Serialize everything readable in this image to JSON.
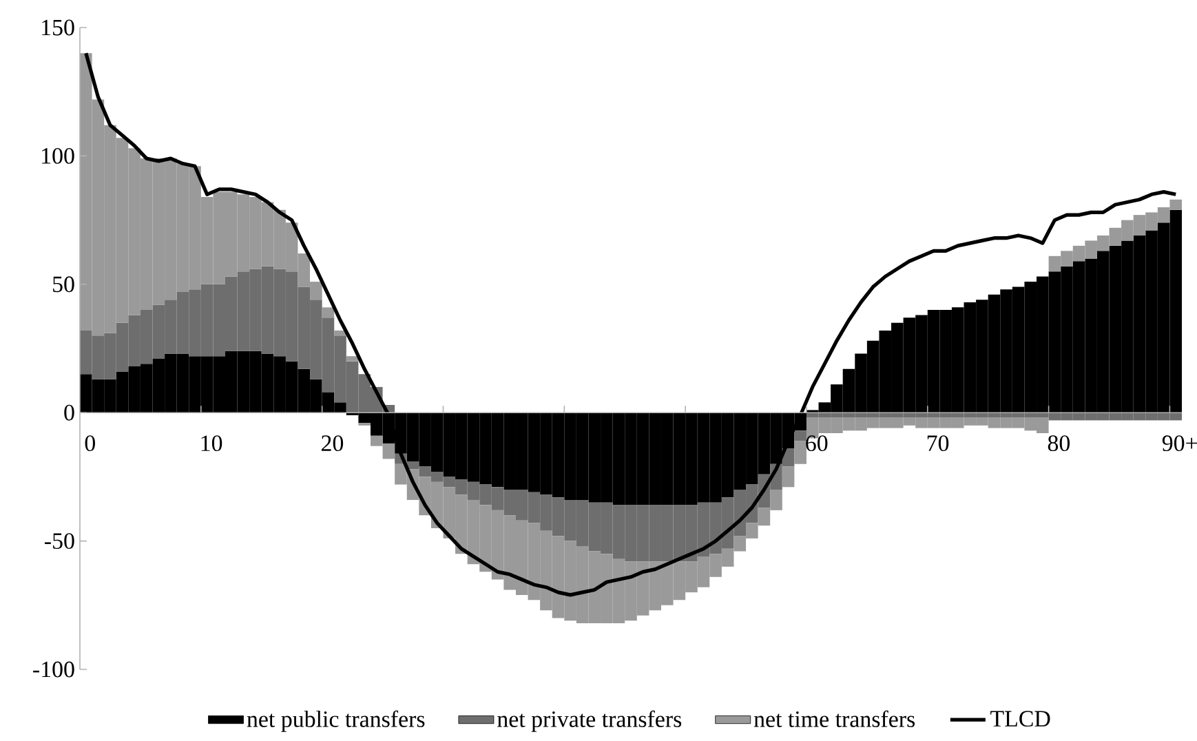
{
  "chart_data": {
    "type": "bar",
    "stacked": true,
    "legend": "bottom",
    "categories": [
      "0",
      null,
      null,
      null,
      null,
      null,
      null,
      null,
      null,
      null,
      "10",
      null,
      null,
      null,
      null,
      null,
      null,
      null,
      null,
      null,
      "20",
      null,
      null,
      null,
      null,
      null,
      null,
      null,
      null,
      null,
      null,
      null,
      null,
      null,
      null,
      null,
      null,
      null,
      null,
      null,
      null,
      null,
      null,
      null,
      null,
      null,
      null,
      null,
      null,
      null,
      null,
      null,
      null,
      null,
      null,
      null,
      null,
      null,
      null,
      null,
      "60",
      null,
      null,
      null,
      null,
      null,
      null,
      null,
      null,
      null,
      "70",
      null,
      null,
      null,
      null,
      null,
      null,
      null,
      null,
      null,
      "80",
      null,
      null,
      null,
      null,
      null,
      null,
      null,
      null,
      null,
      "90+"
    ],
    "ylim": [
      -100,
      150
    ],
    "yticks": [
      -100,
      -50,
      0,
      50,
      100,
      150
    ],
    "series": [
      {
        "name": "net public transfers",
        "color": "#000000",
        "values": [
          15,
          13,
          13,
          16,
          18,
          19,
          21,
          23,
          23,
          22,
          22,
          22,
          24,
          24,
          24,
          23,
          22,
          20,
          17,
          13,
          8,
          4,
          -1,
          -4,
          -9,
          -12,
          -16,
          -19,
          -21,
          -23,
          -25,
          -26,
          -27,
          -28,
          -29,
          -30,
          -30,
          -31,
          -32,
          -33,
          -34,
          -34,
          -35,
          -35,
          -36,
          -36,
          -36,
          -36,
          -36,
          -36,
          -36,
          -35,
          -35,
          -33,
          -30,
          -28,
          -24,
          -20,
          -14,
          -7,
          1,
          4,
          11,
          17,
          23,
          28,
          32,
          35,
          37,
          38,
          40,
          40,
          41,
          43,
          44,
          46,
          48,
          49,
          51,
          53,
          55,
          57,
          59,
          60,
          63,
          65,
          67,
          69,
          71,
          74,
          79
        ]
      },
      {
        "name": "net private transfers",
        "color": "#6e6e6e",
        "values": [
          17,
          17,
          18,
          19,
          20,
          21,
          21,
          21,
          24,
          26,
          28,
          28,
          29,
          31,
          32,
          34,
          34,
          35,
          32,
          31,
          29,
          26,
          20,
          15,
          10,
          3,
          -4,
          -3,
          -4,
          -4,
          -4,
          -6,
          -7,
          -8,
          -9,
          -10,
          -12,
          -12,
          -14,
          -15,
          -16,
          -18,
          -19,
          -20,
          -21,
          -22,
          -22,
          -22,
          -22,
          -22,
          -22,
          -21,
          -20,
          -20,
          -18,
          -15,
          -13,
          -10,
          -7,
          -4,
          -2,
          -2,
          -2,
          -2,
          -2,
          -2,
          -2,
          -2,
          -2,
          -2,
          -2,
          -2,
          -2,
          -2,
          -2,
          -2,
          -2,
          -2,
          -2,
          -2,
          -3,
          -3,
          -3,
          -3,
          -3,
          -3,
          -3,
          -3,
          -3,
          -3,
          -3
        ]
      },
      {
        "name": "net time transfers",
        "color": "#9a9a9a",
        "values": [
          108,
          92,
          81,
          72,
          65,
          59,
          57,
          55,
          50,
          48,
          34,
          36,
          33,
          30,
          28,
          25,
          23,
          19,
          13,
          7,
          4,
          2,
          2,
          -1,
          -4,
          -6,
          -8,
          -12,
          -15,
          -18,
          -20,
          -23,
          -25,
          -26,
          -27,
          -29,
          -29,
          -30,
          -31,
          -32,
          -31,
          -30,
          -28,
          -27,
          -25,
          -23,
          -21,
          -19,
          -17,
          -15,
          -12,
          -12,
          -9,
          -7,
          -6,
          -6,
          -7,
          -8,
          -8,
          -9,
          -8,
          -6,
          -6,
          -5,
          -5,
          -4,
          -4,
          -4,
          -3,
          -4,
          -4,
          -4,
          -4,
          -3,
          -3,
          -4,
          -4,
          -4,
          -5,
          -6,
          6,
          6,
          6,
          7,
          6,
          7,
          8,
          8,
          7,
          6,
          4
        ]
      },
      {
        "name": "TLCD",
        "type": "line",
        "color": "#000000",
        "values": [
          140,
          123,
          112,
          108,
          104,
          99,
          98,
          99,
          97,
          96,
          85,
          87,
          87,
          86,
          85,
          82,
          78,
          75,
          65,
          56,
          46,
          36,
          27,
          17,
          8,
          -1,
          -16,
          -27,
          -36,
          -43,
          -48,
          -53,
          -56,
          -59,
          -62,
          -63,
          -65,
          -67,
          -68,
          -70,
          -71,
          -70,
          -69,
          -66,
          -65,
          -64,
          -62,
          -61,
          -59,
          -57,
          -55,
          -53,
          -50,
          -46,
          -42,
          -37,
          -30,
          -22,
          -11,
          -1,
          10,
          19,
          28,
          36,
          43,
          49,
          53,
          56,
          59,
          61,
          63,
          63,
          65,
          66,
          67,
          68,
          68,
          69,
          68,
          66,
          75,
          77,
          77,
          78,
          78,
          81,
          82,
          83,
          85,
          86,
          85
        ]
      }
    ]
  }
}
